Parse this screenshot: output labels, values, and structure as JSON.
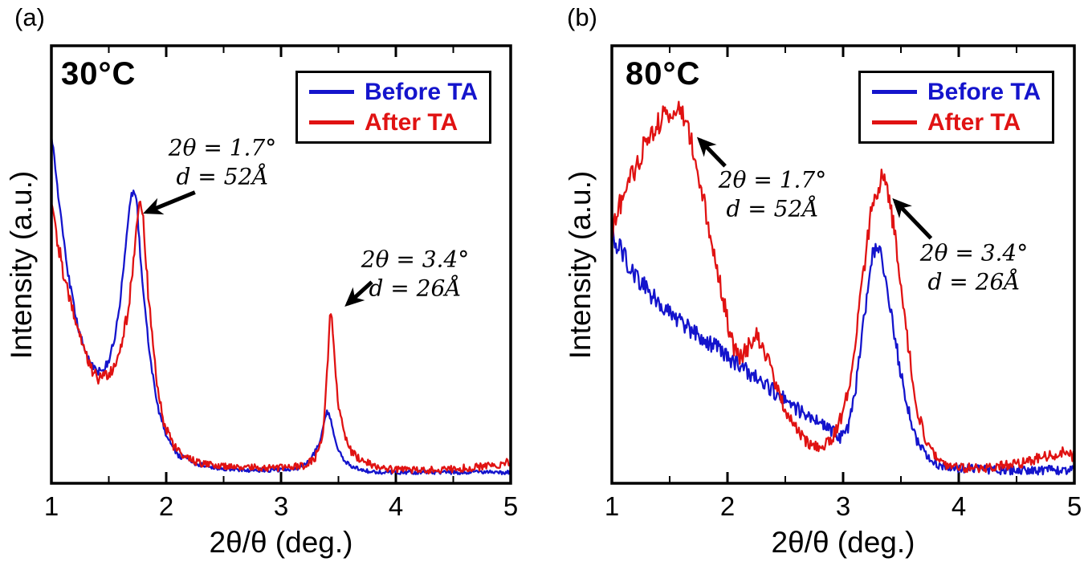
{
  "figure": {
    "background": "#ffffff",
    "axis_color": "#000000"
  },
  "chart_data": [
    {
      "type": "line",
      "panel_label": "(a)",
      "title": "30°C",
      "xlabel": "2θ/θ (deg.)",
      "ylabel": "Intensity (a.u.)",
      "xlim": [
        1,
        5
      ],
      "ylim": [
        0,
        100
      ],
      "x_ticks": [
        1,
        2,
        3,
        4,
        5
      ],
      "x_minor_step": 0.5,
      "grid": false,
      "legend_position": "top-right",
      "series": [
        {
          "name": "Before TA",
          "color": "#1414cc",
          "noise": 0.9,
          "points": [
            [
              1,
              80
            ],
            [
              1.05,
              68
            ],
            [
              1.1,
              57
            ],
            [
              1.15,
              47
            ],
            [
              1.2,
              40
            ],
            [
              1.25,
              34
            ],
            [
              1.3,
              30
            ],
            [
              1.35,
              27
            ],
            [
              1.4,
              25.5
            ],
            [
              1.45,
              26
            ],
            [
              1.5,
              28
            ],
            [
              1.55,
              33
            ],
            [
              1.6,
              42
            ],
            [
              1.65,
              55
            ],
            [
              1.69,
              65
            ],
            [
              1.72,
              68
            ],
            [
              1.75,
              62
            ],
            [
              1.78,
              50
            ],
            [
              1.82,
              38
            ],
            [
              1.87,
              27
            ],
            [
              1.92,
              18
            ],
            [
              2,
              11
            ],
            [
              2.1,
              6.5
            ],
            [
              2.25,
              4.5
            ],
            [
              2.45,
              3.5
            ],
            [
              2.7,
              3
            ],
            [
              3,
              3
            ],
            [
              3.15,
              3.5
            ],
            [
              3.25,
              5
            ],
            [
              3.33,
              9
            ],
            [
              3.4,
              17
            ],
            [
              3.43,
              15
            ],
            [
              3.48,
              9
            ],
            [
              3.55,
              5
            ],
            [
              3.65,
              3.5
            ],
            [
              3.8,
              2.5
            ],
            [
              4,
              2.5
            ],
            [
              4.3,
              2.5
            ],
            [
              4.6,
              2.5
            ],
            [
              5,
              2.5
            ]
          ]
        },
        {
          "name": "After TA",
          "color": "#e01212",
          "noise": 1.6,
          "points": [
            [
              1,
              64
            ],
            [
              1.05,
              56
            ],
            [
              1.1,
              49
            ],
            [
              1.15,
              43
            ],
            [
              1.2,
              38
            ],
            [
              1.25,
              33
            ],
            [
              1.3,
              29
            ],
            [
              1.35,
              26
            ],
            [
              1.4,
              24
            ],
            [
              1.45,
              24
            ],
            [
              1.5,
              25
            ],
            [
              1.55,
              27
            ],
            [
              1.6,
              31
            ],
            [
              1.65,
              37
            ],
            [
              1.7,
              46
            ],
            [
              1.74,
              57
            ],
            [
              1.77,
              64
            ],
            [
              1.8,
              60
            ],
            [
              1.83,
              48
            ],
            [
              1.87,
              35
            ],
            [
              1.92,
              23
            ],
            [
              1.98,
              14
            ],
            [
              2.05,
              9
            ],
            [
              2.15,
              6
            ],
            [
              2.3,
              4.5
            ],
            [
              2.5,
              4
            ],
            [
              2.75,
              3.5
            ],
            [
              3,
              3.5
            ],
            [
              3.2,
              4
            ],
            [
              3.3,
              6
            ],
            [
              3.37,
              12
            ],
            [
              3.41,
              30
            ],
            [
              3.43,
              42
            ],
            [
              3.45,
              34
            ],
            [
              3.49,
              20
            ],
            [
              3.55,
              11
            ],
            [
              3.62,
              7
            ],
            [
              3.72,
              5
            ],
            [
              3.85,
              3.5
            ],
            [
              4.05,
              3
            ],
            [
              4.3,
              3
            ],
            [
              4.6,
              3.5
            ],
            [
              4.85,
              4
            ],
            [
              5,
              5
            ]
          ]
        }
      ],
      "annotations": [
        {
          "line1": "2θ = 1.7°",
          "line2": "d = 52Å",
          "arrow": {
            "from": [
              2.25,
              66.5
            ],
            "to": [
              1.83,
              62
            ]
          }
        },
        {
          "line1": "2θ = 3.4°",
          "line2": "d = 26Å",
          "arrow": {
            "from": [
              3.79,
              46
            ],
            "to": [
              3.58,
              41
            ]
          }
        }
      ]
    },
    {
      "type": "line",
      "panel_label": "(b)",
      "title": "80°C",
      "xlabel": "2θ/θ (deg.)",
      "ylabel": "Intensity (a.u.)",
      "xlim": [
        1,
        5
      ],
      "ylim": [
        0,
        100
      ],
      "x_ticks": [
        1,
        2,
        3,
        4,
        5
      ],
      "x_minor_step": 0.5,
      "grid": false,
      "legend_position": "top-right",
      "series": [
        {
          "name": "Before TA",
          "color": "#1414cc",
          "noise": 2.0,
          "points": [
            [
              1,
              57
            ],
            [
              1.1,
              52
            ],
            [
              1.2,
              48
            ],
            [
              1.3,
              44.5
            ],
            [
              1.4,
              41.5
            ],
            [
              1.5,
              39
            ],
            [
              1.6,
              36.5
            ],
            [
              1.7,
              34.5
            ],
            [
              1.8,
              32.5
            ],
            [
              1.9,
              31
            ],
            [
              2,
              29
            ],
            [
              2.1,
              27
            ],
            [
              2.2,
              25
            ],
            [
              2.3,
              23
            ],
            [
              2.4,
              21
            ],
            [
              2.5,
              19
            ],
            [
              2.6,
              17
            ],
            [
              2.7,
              15.5
            ],
            [
              2.8,
              13.5
            ],
            [
              2.9,
              12
            ],
            [
              2.98,
              10.5
            ],
            [
              3.05,
              13
            ],
            [
              3.1,
              20
            ],
            [
              3.15,
              30
            ],
            [
              3.2,
              42
            ],
            [
              3.25,
              51
            ],
            [
              3.3,
              55
            ],
            [
              3.35,
              50
            ],
            [
              3.4,
              42
            ],
            [
              3.45,
              33
            ],
            [
              3.5,
              25
            ],
            [
              3.58,
              15
            ],
            [
              3.65,
              9
            ],
            [
              3.75,
              5.5
            ],
            [
              3.85,
              4
            ],
            [
              4,
              3.5
            ],
            [
              4.25,
              3
            ],
            [
              4.5,
              3
            ],
            [
              4.75,
              3
            ],
            [
              5,
              3
            ]
          ]
        },
        {
          "name": "After TA",
          "color": "#e01212",
          "noise": 2.0,
          "points": [
            [
              1,
              58
            ],
            [
              1.05,
              62
            ],
            [
              1.1,
              66
            ],
            [
              1.15,
              69
            ],
            [
              1.2,
              72
            ],
            [
              1.25,
              75
            ],
            [
              1.3,
              78
            ],
            [
              1.35,
              80
            ],
            [
              1.4,
              82
            ],
            [
              1.45,
              84
            ],
            [
              1.5,
              85
            ],
            [
              1.55,
              86
            ],
            [
              1.6,
              85
            ],
            [
              1.65,
              82
            ],
            [
              1.7,
              77
            ],
            [
              1.75,
              71
            ],
            [
              1.8,
              64
            ],
            [
              1.85,
              57
            ],
            [
              1.9,
              50
            ],
            [
              1.95,
              44
            ],
            [
              2,
              37
            ],
            [
              2.05,
              31
            ],
            [
              2.1,
              29
            ],
            [
              2.15,
              30
            ],
            [
              2.2,
              32
            ],
            [
              2.25,
              33.5
            ],
            [
              2.3,
              32
            ],
            [
              2.35,
              28
            ],
            [
              2.4,
              24
            ],
            [
              2.5,
              17
            ],
            [
              2.6,
              12
            ],
            [
              2.7,
              9
            ],
            [
              2.8,
              8
            ],
            [
              2.9,
              10
            ],
            [
              3,
              16
            ],
            [
              3.05,
              22
            ],
            [
              3.1,
              30
            ],
            [
              3.15,
              42
            ],
            [
              3.2,
              54
            ],
            [
              3.25,
              63
            ],
            [
              3.3,
              68
            ],
            [
              3.35,
              70
            ],
            [
              3.4,
              65
            ],
            [
              3.45,
              56
            ],
            [
              3.5,
              45
            ],
            [
              3.55,
              34
            ],
            [
              3.6,
              24
            ],
            [
              3.65,
              16
            ],
            [
              3.7,
              11
            ],
            [
              3.8,
              6
            ],
            [
              3.9,
              4
            ],
            [
              4,
              3.5
            ],
            [
              4.2,
              3.5
            ],
            [
              4.4,
              4
            ],
            [
              4.6,
              5
            ],
            [
              4.8,
              6.5
            ],
            [
              4.9,
              7
            ],
            [
              5,
              6
            ]
          ]
        }
      ],
      "annotations": [
        {
          "line1": "2θ = 1.7°",
          "line2": "d = 52Å",
          "arrow": {
            "from": [
              1.98,
              72.5
            ],
            "to": [
              1.76,
              78.5
            ]
          }
        },
        {
          "line1": "2θ = 3.4°",
          "line2": "d = 26Å",
          "arrow": {
            "from": [
              3.76,
              56
            ],
            "to": [
              3.45,
              64.5
            ]
          }
        }
      ]
    }
  ]
}
